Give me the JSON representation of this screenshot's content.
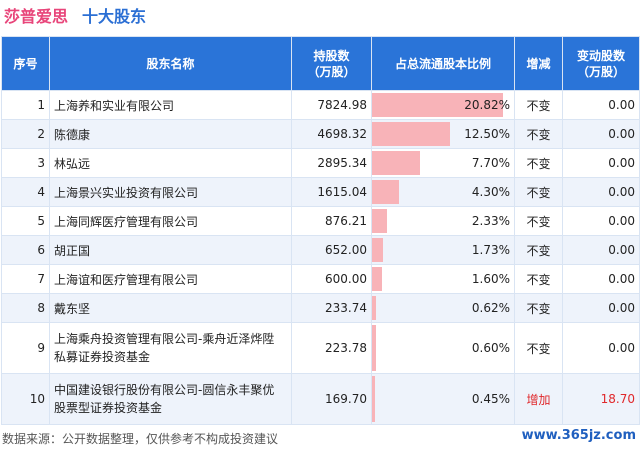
{
  "header": {
    "company": "莎普爱思",
    "section": "十大股东"
  },
  "table": {
    "columns": {
      "rank": "序号",
      "name": "股东名称",
      "shares": "持股数\n（万股）",
      "pct": "占总流通股本比例",
      "status": "增减",
      "change": "变动股数\n（万股）"
    },
    "rows": [
      {
        "rank": "1",
        "name": "上海养和实业有限公司",
        "shares": "7824.98",
        "pct": "20.82%",
        "pct_value": 20.82,
        "status": "不变",
        "change": "0.00"
      },
      {
        "rank": "2",
        "name": "陈德康",
        "shares": "4698.32",
        "pct": "12.50%",
        "pct_value": 12.5,
        "status": "不变",
        "change": "0.00"
      },
      {
        "rank": "3",
        "name": "林弘远",
        "shares": "2895.34",
        "pct": "7.70%",
        "pct_value": 7.7,
        "status": "不变",
        "change": "0.00"
      },
      {
        "rank": "4",
        "name": "上海景兴实业投资有限公司",
        "shares": "1615.04",
        "pct": "4.30%",
        "pct_value": 4.3,
        "status": "不变",
        "change": "0.00"
      },
      {
        "rank": "5",
        "name": "上海同辉医疗管理有限公司",
        "shares": "876.21",
        "pct": "2.33%",
        "pct_value": 2.33,
        "status": "不变",
        "change": "0.00"
      },
      {
        "rank": "6",
        "name": "胡正国",
        "shares": "652.00",
        "pct": "1.73%",
        "pct_value": 1.73,
        "status": "不变",
        "change": "0.00"
      },
      {
        "rank": "7",
        "name": "上海谊和医疗管理有限公司",
        "shares": "600.00",
        "pct": "1.60%",
        "pct_value": 1.6,
        "status": "不变",
        "change": "0.00"
      },
      {
        "rank": "8",
        "name": "戴东坚",
        "shares": "233.74",
        "pct": "0.62%",
        "pct_value": 0.62,
        "status": "不变",
        "change": "0.00"
      },
      {
        "rank": "9",
        "name": "上海乘舟投资管理有限公司-乘舟近泽烨陞私募证券投资基金",
        "shares": "223.78",
        "pct": "0.60%",
        "pct_value": 0.6,
        "status": "不变",
        "change": "0.00"
      },
      {
        "rank": "10",
        "name": "中国建设银行股份有限公司-圆信永丰聚优股票型证券投资基金",
        "shares": "169.70",
        "pct": "0.45%",
        "pct_value": 0.45,
        "status": "增加",
        "change": "18.70"
      }
    ]
  },
  "footer": {
    "source": "数据来源：公开数据整理，仅供参考不构成投资建议",
    "site": "www.365jz.com"
  },
  "colors": {
    "header_bg": "#2a74d8",
    "bar": "#f8b3b8",
    "title_pink": "#e8457a",
    "title_blue": "#2b6fd4",
    "increase_red": "#e0282b"
  }
}
